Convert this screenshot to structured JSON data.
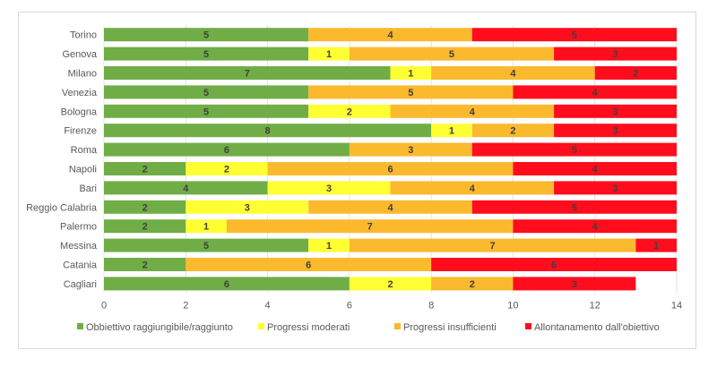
{
  "chart_data": {
    "type": "bar",
    "orientation": "horizontal",
    "stacked": true,
    "title": "",
    "xlabel": "",
    "ylabel": "",
    "xlim": [
      0,
      14
    ],
    "x_ticks": [
      0,
      2,
      4,
      6,
      8,
      10,
      12,
      14
    ],
    "grid": true,
    "legend_position": "bottom",
    "categories": [
      "Torino",
      "Genova",
      "Milano",
      "Venezia",
      "Bologna",
      "Firenze",
      "Roma",
      "Napoli",
      "Bari",
      "Reggio Calabria",
      "Palermo",
      "Messina",
      "Catania",
      "Cagliari"
    ],
    "series": [
      {
        "name": "Obbiettivo raggiungibile/raggiunto",
        "color": "#70ad47",
        "values": [
          5,
          5,
          7,
          5,
          5,
          8,
          6,
          2,
          4,
          2,
          2,
          5,
          2,
          6
        ]
      },
      {
        "name": "Progressi moderati",
        "color": "#ffff33",
        "values": [
          0,
          1,
          1,
          0,
          2,
          1,
          0,
          2,
          3,
          3,
          1,
          1,
          0,
          2
        ]
      },
      {
        "name": "Progressi insufficienti",
        "color": "#fbb92e",
        "values": [
          4,
          5,
          4,
          5,
          4,
          2,
          3,
          6,
          4,
          4,
          7,
          7,
          6,
          2
        ]
      },
      {
        "name": "Allontanamento dall'obiettivo",
        "color": "#ff0d1d",
        "values": [
          5,
          3,
          2,
          4,
          3,
          3,
          5,
          4,
          3,
          5,
          4,
          1,
          6,
          3
        ]
      }
    ],
    "data_labels": true
  }
}
